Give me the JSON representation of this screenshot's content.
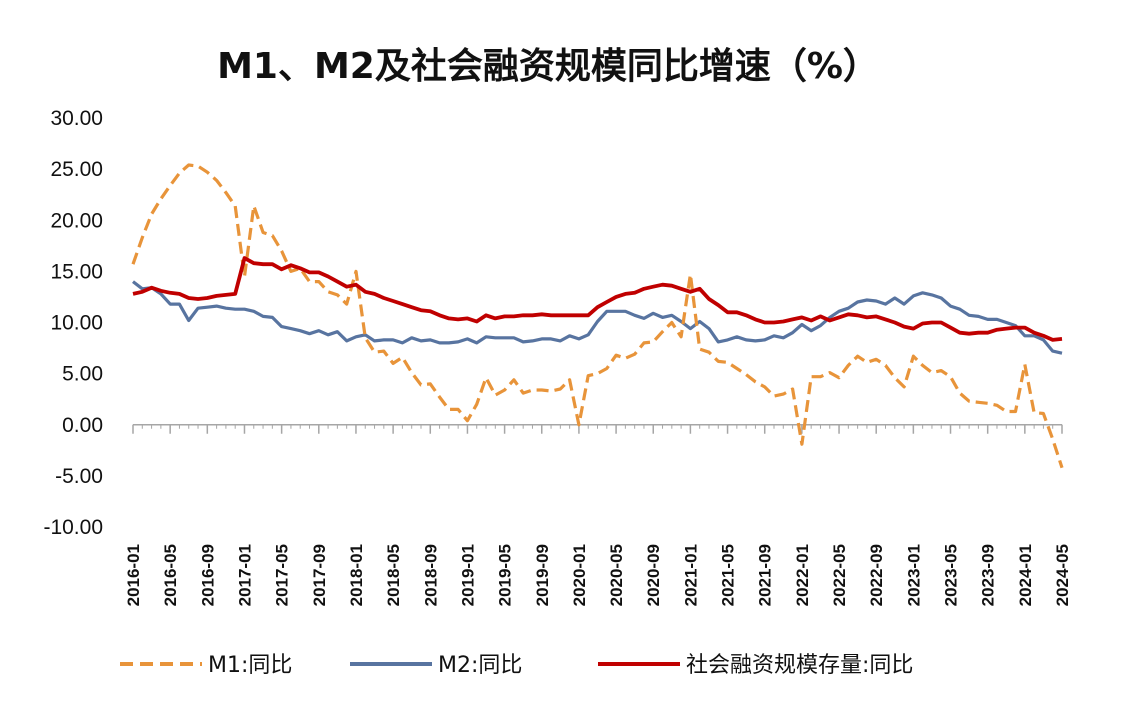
{
  "chart_data": {
    "type": "line",
    "title": "M1、M2及社会融资规模同比增速（%）",
    "xlabel": "",
    "ylabel": "",
    "ylim": [
      -10,
      30
    ],
    "yticks": [
      "30.00",
      "25.00",
      "20.00",
      "15.00",
      "10.00",
      "5.00",
      "0.00",
      "-5.00",
      "-10.00"
    ],
    "x_tick_labels": [
      "2016-01",
      "2016-05",
      "2016-09",
      "2017-01",
      "2017-05",
      "2017-09",
      "2018-01",
      "2018-05",
      "2018-09",
      "2019-01",
      "2019-05",
      "2019-09",
      "2020-01",
      "2020-05",
      "2020-09",
      "2021-01",
      "2021-05",
      "2021-09",
      "2022-01",
      "2022-05",
      "2022-09",
      "2023-01",
      "2023-05",
      "2023-09",
      "2024-01",
      "2024-05"
    ],
    "x": [
      "2016-01",
      "2016-02",
      "2016-03",
      "2016-04",
      "2016-05",
      "2016-06",
      "2016-07",
      "2016-08",
      "2016-09",
      "2016-10",
      "2016-11",
      "2016-12",
      "2017-01",
      "2017-02",
      "2017-03",
      "2017-04",
      "2017-05",
      "2017-06",
      "2017-07",
      "2017-08",
      "2017-09",
      "2017-10",
      "2017-11",
      "2017-12",
      "2018-01",
      "2018-02",
      "2018-03",
      "2018-04",
      "2018-05",
      "2018-06",
      "2018-07",
      "2018-08",
      "2018-09",
      "2018-10",
      "2018-11",
      "2018-12",
      "2019-01",
      "2019-02",
      "2019-03",
      "2019-04",
      "2019-05",
      "2019-06",
      "2019-07",
      "2019-08",
      "2019-09",
      "2019-10",
      "2019-11",
      "2019-12",
      "2020-01",
      "2020-02",
      "2020-03",
      "2020-04",
      "2020-05",
      "2020-06",
      "2020-07",
      "2020-08",
      "2020-09",
      "2020-10",
      "2020-11",
      "2020-12",
      "2021-01",
      "2021-02",
      "2021-03",
      "2021-04",
      "2021-05",
      "2021-06",
      "2021-07",
      "2021-08",
      "2021-09",
      "2021-10",
      "2021-11",
      "2021-12",
      "2022-01",
      "2022-02",
      "2022-03",
      "2022-04",
      "2022-05",
      "2022-06",
      "2022-07",
      "2022-08",
      "2022-09",
      "2022-10",
      "2022-11",
      "2022-12",
      "2023-01",
      "2023-02",
      "2023-03",
      "2023-04",
      "2023-05",
      "2023-06",
      "2023-07",
      "2023-08",
      "2023-09",
      "2023-10",
      "2023-11",
      "2023-12",
      "2024-01",
      "2024-02",
      "2024-03",
      "2024-04",
      "2024-05"
    ],
    "series": [
      {
        "name": "M1:同比",
        "color": "#E8943A",
        "style": "dashed",
        "values": [
          15.7,
          18.3,
          20.6,
          22.1,
          23.4,
          24.6,
          25.4,
          25.3,
          24.7,
          23.9,
          22.7,
          21.4,
          14.5,
          21.4,
          18.8,
          18.5,
          17.0,
          15.0,
          15.3,
          14.0,
          14.0,
          13.0,
          12.7,
          11.8,
          15.0,
          8.5,
          7.1,
          7.2,
          6.0,
          6.6,
          5.1,
          3.9,
          4.0,
          2.7,
          1.5,
          1.5,
          0.4,
          2.0,
          4.6,
          2.9,
          3.4,
          4.4,
          3.1,
          3.4,
          3.4,
          3.3,
          3.5,
          4.4,
          0.0,
          4.8,
          5.0,
          5.5,
          6.8,
          6.5,
          6.9,
          8.0,
          8.1,
          9.1,
          10.0,
          8.6,
          14.7,
          7.4,
          7.1,
          6.2,
          6.1,
          5.5,
          4.9,
          4.2,
          3.7,
          2.8,
          3.0,
          3.5,
          -1.9,
          4.7,
          4.7,
          5.1,
          4.6,
          5.8,
          6.7,
          6.1,
          6.4,
          5.8,
          4.6,
          3.7,
          6.7,
          5.8,
          5.1,
          5.3,
          4.7,
          3.1,
          2.3,
          2.2,
          2.1,
          1.9,
          1.3,
          1.3,
          5.9,
          1.2,
          1.1,
          -1.4,
          -4.2
        ]
      },
      {
        "name": "M2:同比",
        "color": "#5874A0",
        "style": "solid",
        "values": [
          14.0,
          13.3,
          13.4,
          12.8,
          11.8,
          11.8,
          10.2,
          11.4,
          11.5,
          11.6,
          11.4,
          11.3,
          11.3,
          11.1,
          10.6,
          10.5,
          9.6,
          9.4,
          9.2,
          8.9,
          9.2,
          8.8,
          9.1,
          8.2,
          8.6,
          8.8,
          8.2,
          8.3,
          8.3,
          8.0,
          8.5,
          8.2,
          8.3,
          8.0,
          8.0,
          8.1,
          8.4,
          8.0,
          8.6,
          8.5,
          8.5,
          8.5,
          8.1,
          8.2,
          8.4,
          8.4,
          8.2,
          8.7,
          8.4,
          8.8,
          10.1,
          11.1,
          11.1,
          11.1,
          10.7,
          10.4,
          10.9,
          10.5,
          10.7,
          10.1,
          9.4,
          10.1,
          9.4,
          8.1,
          8.3,
          8.6,
          8.3,
          8.2,
          8.3,
          8.7,
          8.5,
          9.0,
          9.8,
          9.2,
          9.7,
          10.5,
          11.1,
          11.4,
          12.0,
          12.2,
          12.1,
          11.8,
          12.4,
          11.8,
          12.6,
          12.9,
          12.7,
          12.4,
          11.6,
          11.3,
          10.7,
          10.6,
          10.3,
          10.3,
          10.0,
          9.7,
          8.7,
          8.7,
          8.3,
          7.2,
          7.0
        ]
      },
      {
        "name": "社会融资规模存量:同比",
        "color": "#C00000",
        "style": "solid",
        "values": [
          12.8,
          13.0,
          13.4,
          13.1,
          12.9,
          12.8,
          12.4,
          12.3,
          12.4,
          12.6,
          12.7,
          12.8,
          16.3,
          15.8,
          15.7,
          15.7,
          15.2,
          15.6,
          15.3,
          14.9,
          14.9,
          14.5,
          14.0,
          13.5,
          13.7,
          13.0,
          12.8,
          12.4,
          12.1,
          11.8,
          11.5,
          11.2,
          11.1,
          10.7,
          10.4,
          10.3,
          10.4,
          10.1,
          10.7,
          10.4,
          10.6,
          10.6,
          10.7,
          10.7,
          10.8,
          10.7,
          10.7,
          10.7,
          10.7,
          10.7,
          11.5,
          12.0,
          12.5,
          12.8,
          12.9,
          13.3,
          13.5,
          13.7,
          13.6,
          13.3,
          13.0,
          13.3,
          12.3,
          11.7,
          11.0,
          11.0,
          10.7,
          10.3,
          10.0,
          10.0,
          10.1,
          10.3,
          10.5,
          10.2,
          10.6,
          10.2,
          10.5,
          10.8,
          10.7,
          10.5,
          10.6,
          10.3,
          10.0,
          9.6,
          9.4,
          9.9,
          10.0,
          10.0,
          9.5,
          9.0,
          8.9,
          9.0,
          9.0,
          9.3,
          9.4,
          9.5,
          9.5,
          9.0,
          8.7,
          8.3,
          8.4
        ]
      }
    ],
    "legend_position": "bottom",
    "grid": false
  }
}
